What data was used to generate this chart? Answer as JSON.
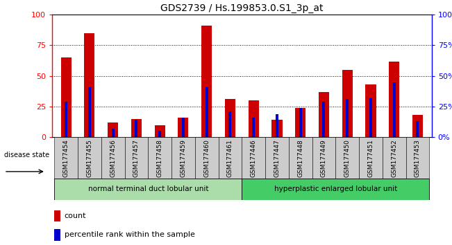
{
  "title": "GDS2739 / Hs.199853.0.S1_3p_at",
  "samples": [
    "GSM177454",
    "GSM177455",
    "GSM177456",
    "GSM177457",
    "GSM177458",
    "GSM177459",
    "GSM177460",
    "GSM177461",
    "GSM177446",
    "GSM177447",
    "GSM177448",
    "GSM177449",
    "GSM177450",
    "GSM177451",
    "GSM177452",
    "GSM177453"
  ],
  "count_values": [
    65,
    85,
    12,
    15,
    10,
    16,
    91,
    31,
    30,
    14,
    24,
    37,
    55,
    43,
    62,
    18
  ],
  "percentile_values": [
    29,
    41,
    7,
    14,
    5,
    16,
    41,
    21,
    16,
    19,
    24,
    29,
    31,
    32,
    45,
    13
  ],
  "bar_color": "#cc0000",
  "percentile_color": "#0000cc",
  "group1_label": "normal terminal duct lobular unit",
  "group2_label": "hyperplastic enlarged lobular unit",
  "group1_color": "#aaddaa",
  "group2_color": "#44cc66",
  "disease_state_label": "disease state",
  "legend_count": "count",
  "legend_percentile": "percentile rank within the sample",
  "ylim": [
    0,
    100
  ],
  "yticks": [
    0,
    25,
    50,
    75,
    100
  ],
  "background_color": "#ffffff",
  "tick_bg_color": "#cccccc",
  "title_fontsize": 10
}
